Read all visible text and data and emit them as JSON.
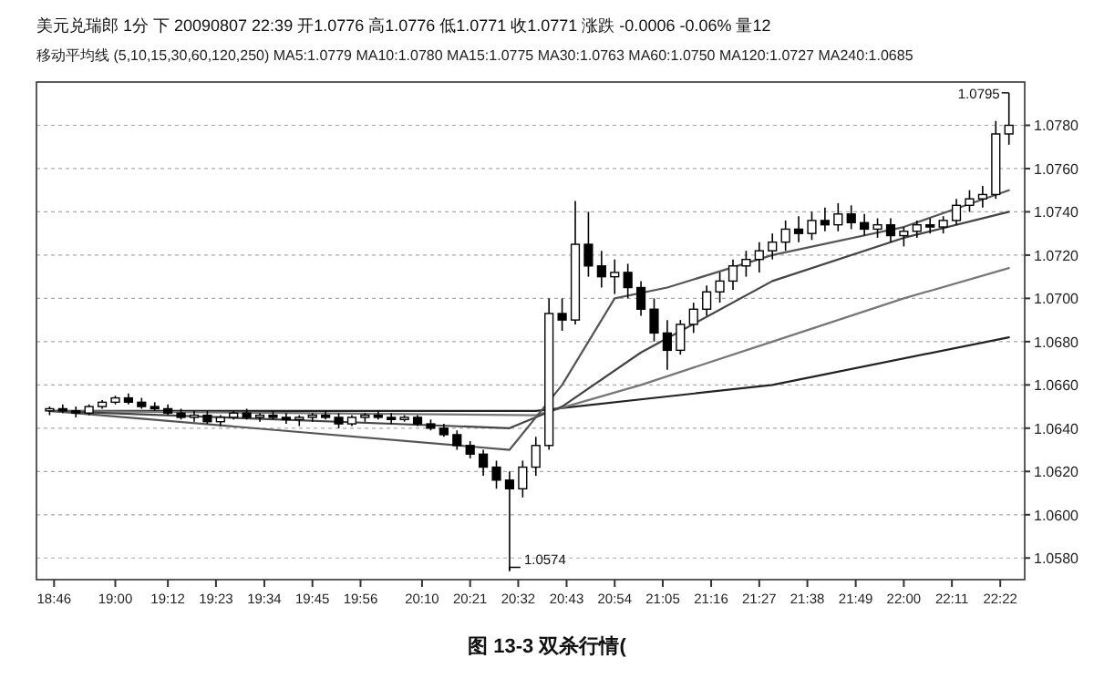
{
  "chart_data": {
    "type": "candlestick",
    "title": "美元兑瑞郎 1分 下 20090807 22:39 开1.0776 高1.0776 低1.0771 收1.0771 涨跌 -0.0006 -0.06% 量12",
    "subtitle": "移动平均线 (5,10,15,30,60,120,250) MA5:1.0779 MA10:1.0780 MA15:1.0775 MA30:1.0763 MA60:1.0750 MA120:1.0727 MA240:1.0685",
    "color": "#000000",
    "grid": "y",
    "annotations": [
      {
        "text": "1.0574",
        "x": 20.5,
        "y": 1.0574
      },
      {
        "text": "1.0795",
        "x": 22.4,
        "y": 1.0795
      },
      "图 13-3 双杀行情("
    ],
    "xlim": [
      18.7,
      22.46
    ],
    "ylim": [
      1.057,
      1.08
    ],
    "xticks": [
      {
        "value": 18.767,
        "label": "18:46"
      },
      {
        "value": 19.0,
        "label": "19:00"
      },
      {
        "value": 19.2,
        "label": "19:12"
      },
      {
        "value": 19.383,
        "label": "19:23"
      },
      {
        "value": 19.567,
        "label": "19:34"
      },
      {
        "value": 19.75,
        "label": "19:45"
      },
      {
        "value": 19.933,
        "label": "19:56"
      },
      {
        "value": 20.167,
        "label": "20:10"
      },
      {
        "value": 20.35,
        "label": "20:21"
      },
      {
        "value": 20.533,
        "label": "20:32"
      },
      {
        "value": 20.717,
        "label": "20:43"
      },
      {
        "value": 20.9,
        "label": "20:54"
      },
      {
        "value": 21.083,
        "label": "21:05"
      },
      {
        "value": 21.267,
        "label": "21:16"
      },
      {
        "value": 21.45,
        "label": "21:27"
      },
      {
        "value": 21.633,
        "label": "21:38"
      },
      {
        "value": 21.817,
        "label": "21:49"
      },
      {
        "value": 22.0,
        "label": "22:00"
      },
      {
        "value": 22.183,
        "label": "22:11"
      },
      {
        "value": 22.367,
        "label": "22:22"
      }
    ],
    "yticks": [
      {
        "value": 1.058,
        "label": "1.0580"
      },
      {
        "value": 1.06,
        "label": "1.0600"
      },
      {
        "value": 1.062,
        "label": "1.0620"
      },
      {
        "value": 1.064,
        "label": "1.0640"
      },
      {
        "value": 1.066,
        "label": "1.0660"
      },
      {
        "value": 1.068,
        "label": "1.0680"
      },
      {
        "value": 1.07,
        "label": "1.0700"
      },
      {
        "value": 1.072,
        "label": "1.0720"
      },
      {
        "value": 1.074,
        "label": "1.0740"
      },
      {
        "value": 1.076,
        "label": "1.0760"
      },
      {
        "value": 1.078,
        "label": "1.0780"
      }
    ],
    "x": [
      18.75,
      18.8,
      18.85,
      18.9,
      18.95,
      19.0,
      19.05,
      19.1,
      19.15,
      19.2,
      19.25,
      19.3,
      19.35,
      19.4,
      19.45,
      19.5,
      19.55,
      19.6,
      19.65,
      19.7,
      19.75,
      19.8,
      19.85,
      19.9,
      19.95,
      20.0,
      20.05,
      20.1,
      20.15,
      20.2,
      20.25,
      20.3,
      20.35,
      20.4,
      20.45,
      20.5,
      20.55,
      20.6,
      20.65,
      20.7,
      20.75,
      20.8,
      20.85,
      20.9,
      20.95,
      21.0,
      21.05,
      21.1,
      21.15,
      21.2,
      21.25,
      21.3,
      21.35,
      21.4,
      21.45,
      21.5,
      21.55,
      21.6,
      21.65,
      21.7,
      21.75,
      21.8,
      21.85,
      21.9,
      21.95,
      22.0,
      22.05,
      22.1,
      22.15,
      22.2,
      22.25,
      22.3,
      22.35,
      22.4
    ],
    "ohlc": [
      [
        1.0648,
        1.065,
        1.0646,
        1.0649
      ],
      [
        1.0649,
        1.0651,
        1.0647,
        1.0648
      ],
      [
        1.0648,
        1.065,
        1.0645,
        1.0647
      ],
      [
        1.0647,
        1.0651,
        1.0646,
        1.065
      ],
      [
        1.065,
        1.0653,
        1.0649,
        1.0652
      ],
      [
        1.0652,
        1.0655,
        1.0651,
        1.0654
      ],
      [
        1.0654,
        1.0656,
        1.0651,
        1.0652
      ],
      [
        1.0652,
        1.0654,
        1.0649,
        1.065
      ],
      [
        1.065,
        1.0652,
        1.0648,
        1.0649
      ],
      [
        1.0649,
        1.0651,
        1.0646,
        1.0647
      ],
      [
        1.0647,
        1.0649,
        1.0644,
        1.0645
      ],
      [
        1.0645,
        1.0648,
        1.0643,
        1.0646
      ],
      [
        1.0646,
        1.0648,
        1.0642,
        1.0643
      ],
      [
        1.0643,
        1.0646,
        1.0641,
        1.0645
      ],
      [
        1.0645,
        1.0648,
        1.0644,
        1.0647
      ],
      [
        1.0647,
        1.0649,
        1.0644,
        1.0645
      ],
      [
        1.0645,
        1.0647,
        1.0643,
        1.0646
      ],
      [
        1.0646,
        1.0648,
        1.0644,
        1.0645
      ],
      [
        1.0645,
        1.0647,
        1.0642,
        1.0644
      ],
      [
        1.0644,
        1.0646,
        1.0641,
        1.0645
      ],
      [
        1.0645,
        1.0647,
        1.0643,
        1.0646
      ],
      [
        1.0646,
        1.0648,
        1.0644,
        1.0645
      ],
      [
        1.0645,
        1.0647,
        1.064,
        1.0642
      ],
      [
        1.0642,
        1.0646,
        1.0641,
        1.0645
      ],
      [
        1.0645,
        1.0647,
        1.0643,
        1.0646
      ],
      [
        1.0646,
        1.0648,
        1.0644,
        1.0645
      ],
      [
        1.0645,
        1.0647,
        1.0642,
        1.0644
      ],
      [
        1.0644,
        1.0646,
        1.0643,
        1.0645
      ],
      [
        1.0645,
        1.0646,
        1.0641,
        1.0642
      ],
      [
        1.0642,
        1.0644,
        1.0639,
        1.064
      ],
      [
        1.064,
        1.0642,
        1.0636,
        1.0637
      ],
      [
        1.0637,
        1.0639,
        1.063,
        1.0632
      ],
      [
        1.0632,
        1.0634,
        1.0626,
        1.0628
      ],
      [
        1.0628,
        1.063,
        1.0618,
        1.0622
      ],
      [
        1.0622,
        1.0625,
        1.0612,
        1.0616
      ],
      [
        1.0616,
        1.062,
        1.0574,
        1.0612
      ],
      [
        1.0612,
        1.0625,
        1.0608,
        1.0622
      ],
      [
        1.0622,
        1.0636,
        1.0618,
        1.0632
      ],
      [
        1.0632,
        1.07,
        1.063,
        1.0693
      ],
      [
        1.0693,
        1.07,
        1.0685,
        1.069
      ],
      [
        1.069,
        1.0745,
        1.0688,
        1.0725
      ],
      [
        1.0725,
        1.074,
        1.071,
        1.0715
      ],
      [
        1.0715,
        1.0722,
        1.0705,
        1.071
      ],
      [
        1.071,
        1.0718,
        1.0702,
        1.0712
      ],
      [
        1.0712,
        1.0716,
        1.07,
        1.0705
      ],
      [
        1.0705,
        1.0708,
        1.0692,
        1.0695
      ],
      [
        1.0695,
        1.07,
        1.068,
        1.0684
      ],
      [
        1.0684,
        1.069,
        1.0667,
        1.0676
      ],
      [
        1.0676,
        1.069,
        1.0674,
        1.0688
      ],
      [
        1.0688,
        1.0698,
        1.0684,
        1.0695
      ],
      [
        1.0695,
        1.0706,
        1.0692,
        1.0703
      ],
      [
        1.0703,
        1.0712,
        1.0698,
        1.0708
      ],
      [
        1.0708,
        1.0718,
        1.0704,
        1.0715
      ],
      [
        1.0715,
        1.0722,
        1.071,
        1.0718
      ],
      [
        1.0718,
        1.0726,
        1.0712,
        1.0722
      ],
      [
        1.0722,
        1.073,
        1.0718,
        1.0726
      ],
      [
        1.0726,
        1.0736,
        1.0722,
        1.0732
      ],
      [
        1.0732,
        1.0738,
        1.0726,
        1.073
      ],
      [
        1.073,
        1.074,
        1.0727,
        1.0736
      ],
      [
        1.0736,
        1.0742,
        1.0731,
        1.0734
      ],
      [
        1.0734,
        1.0744,
        1.0731,
        1.0739
      ],
      [
        1.0739,
        1.0743,
        1.0732,
        1.0735
      ],
      [
        1.0735,
        1.0739,
        1.0729,
        1.0732
      ],
      [
        1.0732,
        1.0737,
        1.0728,
        1.0734
      ],
      [
        1.0734,
        1.0737,
        1.0726,
        1.0729
      ],
      [
        1.0729,
        1.0733,
        1.0724,
        1.0731
      ],
      [
        1.0731,
        1.0736,
        1.0728,
        1.0734
      ],
      [
        1.0734,
        1.0737,
        1.073,
        1.0733
      ],
      [
        1.0733,
        1.0738,
        1.073,
        1.0736
      ],
      [
        1.0736,
        1.0746,
        1.0734,
        1.0743
      ],
      [
        1.0743,
        1.075,
        1.074,
        1.0746
      ],
      [
        1.0746,
        1.0752,
        1.0742,
        1.0748
      ],
      [
        1.0748,
        1.0782,
        1.0746,
        1.0776
      ],
      [
        1.0776,
        1.0795,
        1.0771,
        1.078
      ]
    ],
    "series": [
      {
        "type": "line",
        "color": "#222222",
        "x": [
          18.75,
          20.6,
          21.5,
          22.4
        ],
        "values": [
          1.0648,
          1.0648,
          1.066,
          1.0682
        ]
      },
      {
        "type": "line",
        "color": "#777777",
        "x": [
          18.75,
          20.6,
          21.0,
          21.5,
          22.0,
          22.4
        ],
        "values": [
          1.0648,
          1.0646,
          1.066,
          1.068,
          1.07,
          1.0714
        ]
      },
      {
        "type": "line",
        "color": "#444444",
        "x": [
          18.75,
          20.5,
          20.7,
          21.0,
          21.5,
          22.0,
          22.4
        ],
        "values": [
          1.0648,
          1.064,
          1.065,
          1.0675,
          1.0708,
          1.0728,
          1.074
        ]
      },
      {
        "type": "line",
        "color": "#555555",
        "x": [
          18.75,
          20.5,
          20.7,
          20.9,
          21.1,
          21.5,
          22.0,
          22.4
        ],
        "values": [
          1.0648,
          1.063,
          1.066,
          1.07,
          1.0705,
          1.072,
          1.0733,
          1.075
        ]
      }
    ]
  }
}
